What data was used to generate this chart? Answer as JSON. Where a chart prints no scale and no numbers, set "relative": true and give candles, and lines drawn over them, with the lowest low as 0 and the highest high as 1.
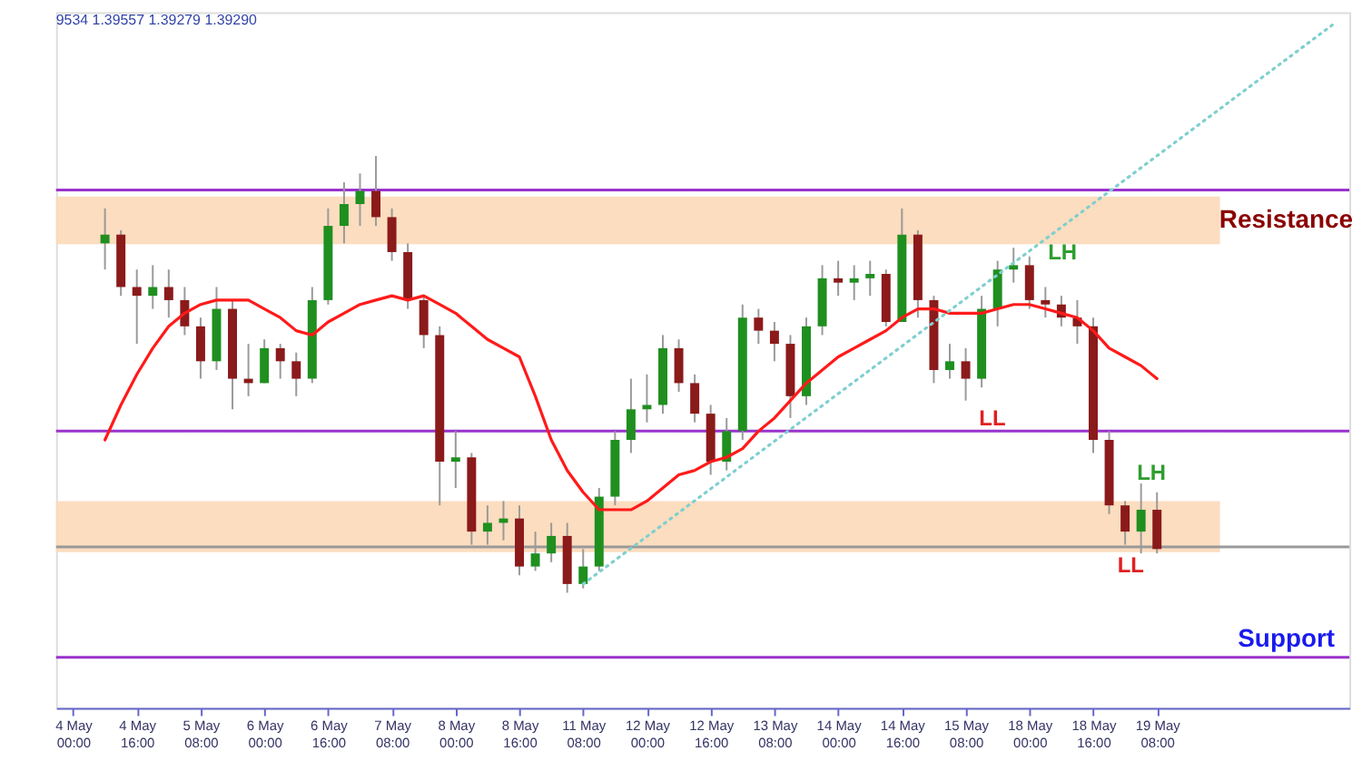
{
  "chart_data": {
    "type": "candlestick",
    "relative": true,
    "categories": [
      "4 May 00:00",
      null,
      null,
      null,
      "4 May 16:00",
      null,
      null,
      null,
      "5 May 08:00",
      null,
      null,
      null,
      "6 May 00:00",
      null,
      null,
      null,
      "6 May 16:00",
      null,
      null,
      null,
      "7 May 08:00",
      null,
      null,
      null,
      "8 May 00:00",
      null,
      null,
      null,
      "8 May 16:00",
      null,
      null,
      null,
      "11 May 08:00",
      null,
      null,
      null,
      "12 May 00:00",
      null,
      null,
      null,
      "12 May 16:00",
      null,
      null,
      null,
      "13 May 08:00",
      null,
      null,
      null,
      "14 May 00:00",
      null,
      null,
      null,
      "14 May 16:00",
      null,
      null,
      null,
      "15 May 08:00",
      null,
      null,
      null,
      "18 May 00:00",
      null,
      null,
      null,
      "18 May 16:00",
      null,
      null,
      null,
      "19 May 08:00",
      null,
      null,
      null,
      null,
      null,
      null,
      null,
      null,
      null,
      null,
      null
    ],
    "ohlc": [
      null,
      null,
      [
        0.8,
        0.88,
        0.74,
        0.82
      ],
      [
        0.82,
        0.83,
        0.68,
        0.7
      ],
      [
        0.7,
        0.74,
        0.57,
        0.68
      ],
      [
        0.68,
        0.75,
        0.65,
        0.7
      ],
      [
        0.7,
        0.74,
        0.63,
        0.67
      ],
      [
        0.67,
        0.7,
        0.59,
        0.61
      ],
      [
        0.61,
        0.63,
        0.49,
        0.53
      ],
      [
        0.53,
        0.7,
        0.51,
        0.65
      ],
      [
        0.65,
        0.67,
        0.42,
        0.49
      ],
      [
        0.49,
        0.57,
        0.45,
        0.48
      ],
      [
        0.48,
        0.58,
        0.48,
        0.56
      ],
      [
        0.56,
        0.57,
        0.49,
        0.53
      ],
      [
        0.53,
        0.55,
        0.45,
        0.49
      ],
      [
        0.49,
        0.7,
        0.48,
        0.67
      ],
      [
        0.67,
        0.88,
        0.66,
        0.84
      ],
      [
        0.84,
        0.94,
        0.8,
        0.89
      ],
      [
        0.89,
        0.96,
        0.84,
        0.92
      ],
      [
        0.92,
        1.0,
        0.84,
        0.86
      ],
      [
        0.86,
        0.88,
        0.76,
        0.78
      ],
      [
        0.78,
        0.8,
        0.65,
        0.67
      ],
      [
        0.67,
        0.68,
        0.56,
        0.59
      ],
      [
        0.59,
        0.61,
        0.2,
        0.3
      ],
      [
        0.3,
        0.37,
        0.24,
        0.31
      ],
      [
        0.31,
        0.32,
        0.11,
        0.14
      ],
      [
        0.14,
        0.2,
        0.11,
        0.16
      ],
      [
        0.16,
        0.21,
        0.12,
        0.17
      ],
      [
        0.17,
        0.2,
        0.04,
        0.06
      ],
      [
        0.06,
        0.14,
        0.05,
        0.09
      ],
      [
        0.09,
        0.16,
        0.07,
        0.13
      ],
      [
        0.13,
        0.16,
        0.0,
        0.02
      ],
      [
        0.02,
        0.1,
        0.01,
        0.06
      ],
      [
        0.06,
        0.24,
        0.05,
        0.22
      ],
      [
        0.22,
        0.37,
        0.2,
        0.35
      ],
      [
        0.35,
        0.49,
        0.32,
        0.42
      ],
      [
        0.42,
        0.5,
        0.39,
        0.43
      ],
      [
        0.43,
        0.59,
        0.41,
        0.56
      ],
      [
        0.56,
        0.58,
        0.46,
        0.48
      ],
      [
        0.48,
        0.5,
        0.39,
        0.41
      ],
      [
        0.41,
        0.43,
        0.27,
        0.3
      ],
      [
        0.3,
        0.4,
        0.28,
        0.37
      ],
      [
        0.37,
        0.66,
        0.35,
        0.63
      ],
      [
        0.63,
        0.65,
        0.57,
        0.6
      ],
      [
        0.6,
        0.62,
        0.53,
        0.57
      ],
      [
        0.57,
        0.59,
        0.4,
        0.45
      ],
      [
        0.45,
        0.63,
        0.43,
        0.61
      ],
      [
        0.61,
        0.75,
        0.59,
        0.72
      ],
      [
        0.72,
        0.76,
        0.68,
        0.71
      ],
      [
        0.71,
        0.75,
        0.67,
        0.72
      ],
      [
        0.72,
        0.76,
        0.68,
        0.73
      ],
      [
        0.73,
        0.74,
        0.61,
        0.62
      ],
      [
        0.62,
        0.88,
        0.62,
        0.82
      ],
      [
        0.82,
        0.83,
        0.63,
        0.67
      ],
      [
        0.67,
        0.68,
        0.48,
        0.51
      ],
      [
        0.51,
        0.57,
        0.49,
        0.53
      ],
      [
        0.53,
        0.56,
        0.44,
        0.49
      ],
      [
        0.49,
        0.68,
        0.47,
        0.65
      ],
      [
        0.65,
        0.76,
        0.61,
        0.74
      ],
      [
        0.74,
        0.79,
        0.71,
        0.75
      ],
      [
        0.75,
        0.77,
        0.65,
        0.67
      ],
      [
        0.67,
        0.7,
        0.63,
        0.66
      ],
      [
        0.66,
        0.68,
        0.61,
        0.63
      ],
      [
        0.63,
        0.67,
        0.57,
        0.61
      ],
      [
        0.61,
        0.63,
        0.32,
        0.35
      ],
      [
        0.35,
        0.37,
        0.18,
        0.2
      ],
      [
        0.2,
        0.21,
        0.11,
        0.14
      ],
      [
        0.14,
        0.25,
        0.09,
        0.19
      ],
      [
        0.19,
        0.23,
        0.09,
        0.1
      ],
      null,
      null,
      null,
      null,
      null,
      null,
      null,
      null,
      null,
      null,
      null
    ],
    "series": [
      {
        "type": "line",
        "color": "#ff1a1a",
        "line_style": "solid",
        "values": [
          null,
          null,
          0.35,
          0.43,
          0.5,
          0.56,
          0.61,
          0.64,
          0.66,
          0.67,
          0.67,
          0.67,
          0.65,
          0.63,
          0.6,
          0.59,
          0.62,
          0.64,
          0.66,
          0.67,
          0.68,
          0.67,
          0.68,
          0.66,
          0.64,
          0.61,
          0.58,
          0.56,
          0.54,
          0.45,
          0.35,
          0.28,
          0.23,
          0.19,
          0.19,
          0.19,
          0.21,
          0.24,
          0.27,
          0.28,
          0.3,
          0.31,
          0.33,
          0.37,
          0.4,
          0.44,
          0.48,
          0.51,
          0.54,
          0.56,
          0.58,
          0.6,
          0.63,
          0.65,
          0.65,
          0.64,
          0.64,
          0.64,
          0.65,
          0.66,
          0.66,
          0.65,
          0.64,
          0.63,
          0.6,
          0.56,
          0.54,
          0.52,
          0.49,
          null,
          null,
          null,
          null,
          null,
          null,
          null,
          null,
          null,
          null,
          null
        ]
      },
      {
        "type": "line",
        "color": "#7fcfcf",
        "line_style": "dotted",
        "values": [
          null,
          null,
          null,
          null,
          null,
          null,
          null,
          null,
          null,
          null,
          null,
          null,
          null,
          null,
          null,
          null,
          null,
          null,
          null,
          null,
          null,
          null,
          null,
          null,
          null,
          null,
          null,
          null,
          null,
          null,
          null,
          null,
          0.02,
          null,
          null,
          null,
          null,
          null,
          null,
          null,
          null,
          null,
          null,
          null,
          null,
          null,
          null,
          null,
          null,
          null,
          null,
          null,
          null,
          null,
          null,
          null,
          null,
          null,
          null,
          null,
          null,
          null,
          null,
          null,
          null,
          null,
          null,
          null,
          null,
          null,
          null,
          null,
          null,
          null,
          null,
          null,
          null,
          null,
          null,
          1.3
        ]
      }
    ],
    "bands": [
      {
        "axis": "y",
        "from": 0.798,
        "to": 0.907,
        "label": "Resistance",
        "color": "#fcd9b8"
      },
      {
        "axis": "y",
        "from": 0.093,
        "to": 0.21,
        "color": "#fcd9b8"
      }
    ],
    "ref_lines": [
      {
        "axis": "y",
        "value": 0.922,
        "color": "#9933cc"
      },
      {
        "axis": "y",
        "value": 0.37,
        "color": "#9933cc"
      },
      {
        "axis": "y",
        "value": 0.105,
        "color": "#9a9a9a"
      },
      {
        "axis": "y",
        "value": -0.148,
        "label": "Support",
        "color": "#9933cc"
      }
    ],
    "annotations": [
      "9534 1.39557 1.39279 1.39290",
      "LH",
      "LL",
      "LH",
      "LL"
    ],
    "grid": false
  }
}
